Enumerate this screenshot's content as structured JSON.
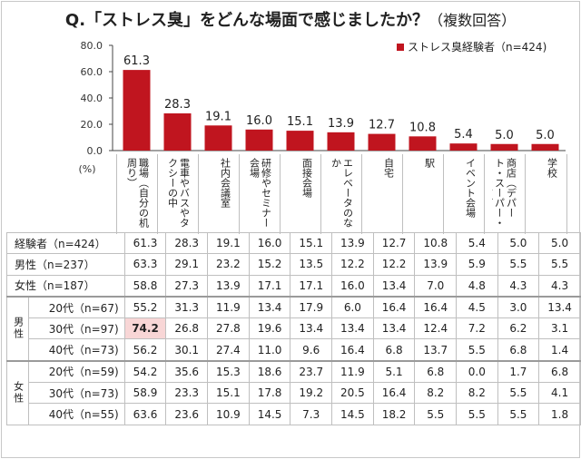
{
  "title": {
    "main": "Q.「ストレス臭」をどんな場面で感じましたか？",
    "sub": "（複数回答）"
  },
  "chart_data": {
    "type": "bar",
    "unit": "(%)",
    "ylim": [
      0,
      80
    ],
    "yticks": [
      "80.0",
      "60.0",
      "40.0",
      "20.0",
      "0.0"
    ],
    "yticks_values": [
      80,
      60,
      40,
      20,
      0
    ],
    "categories": [
      "職場（自分の机周り）",
      "電車やバスやタクシーの中",
      "社内会議室",
      "研修やセミナー会場",
      "面接会場",
      "エレベータのなか",
      "自宅",
      "駅",
      "イベント会場",
      "商店（デパート・スーパー・CVSなど）",
      "学校"
    ],
    "series": [
      {
        "name": "ストレス臭経験者（n=424)",
        "values": [
          61.3,
          28.3,
          19.1,
          16.0,
          15.1,
          13.9,
          12.7,
          10.8,
          5.4,
          5.0,
          5.0
        ]
      }
    ],
    "value_labels": [
      "61.3",
      "28.3",
      "19.1",
      "16.0",
      "15.1",
      "13.9",
      "12.7",
      "10.8",
      "5.4",
      "5.0",
      "5.0"
    ],
    "bar_color": "#c0151f",
    "grid": false,
    "legend_position": "top-right"
  },
  "table": {
    "groups": {
      "male": "男性",
      "female": "女性"
    },
    "rows": [
      {
        "label": "経験者（n=424）",
        "values": [
          "61.3",
          "28.3",
          "19.1",
          "16.0",
          "15.1",
          "13.9",
          "12.7",
          "10.8",
          "5.4",
          "5.0",
          "5.0"
        ]
      },
      {
        "label": "男性（n=237）",
        "values": [
          "63.3",
          "29.1",
          "23.2",
          "15.2",
          "13.5",
          "12.2",
          "12.2",
          "13.9",
          "5.9",
          "5.5",
          "5.5"
        ]
      },
      {
        "label": "女性（n=187）",
        "values": [
          "58.8",
          "27.3",
          "13.9",
          "17.1",
          "17.1",
          "16.0",
          "13.4",
          "7.0",
          "4.8",
          "4.3",
          "4.3"
        ]
      },
      {
        "label": "20代（n=67)",
        "values": [
          "55.2",
          "31.3",
          "11.9",
          "13.4",
          "17.9",
          "6.0",
          "16.4",
          "16.4",
          "4.5",
          "3.0",
          "13.4"
        ]
      },
      {
        "label": "30代（n=97)",
        "values": [
          "74.2",
          "26.8",
          "27.8",
          "19.6",
          "13.4",
          "13.4",
          "13.4",
          "12.4",
          "7.2",
          "6.2",
          "3.1"
        ]
      },
      {
        "label": "40代（n=73)",
        "values": [
          "56.2",
          "30.1",
          "27.4",
          "11.0",
          "9.6",
          "16.4",
          "6.8",
          "13.7",
          "5.5",
          "6.8",
          "1.4"
        ]
      },
      {
        "label": "20代（n=59)",
        "values": [
          "54.2",
          "35.6",
          "15.3",
          "18.6",
          "23.7",
          "11.9",
          "5.1",
          "6.8",
          "0.0",
          "1.7",
          "6.8"
        ]
      },
      {
        "label": "30代（n=73)",
        "values": [
          "58.9",
          "23.3",
          "15.1",
          "17.8",
          "19.2",
          "20.5",
          "16.4",
          "8.2",
          "8.2",
          "5.5",
          "4.1"
        ]
      },
      {
        "label": "40代（n=55)",
        "values": [
          "63.6",
          "23.6",
          "10.9",
          "14.5",
          "7.3",
          "14.5",
          "18.2",
          "5.5",
          "5.5",
          "5.5",
          "1.8"
        ]
      }
    ],
    "highlight_color": "#f8d6d6"
  }
}
